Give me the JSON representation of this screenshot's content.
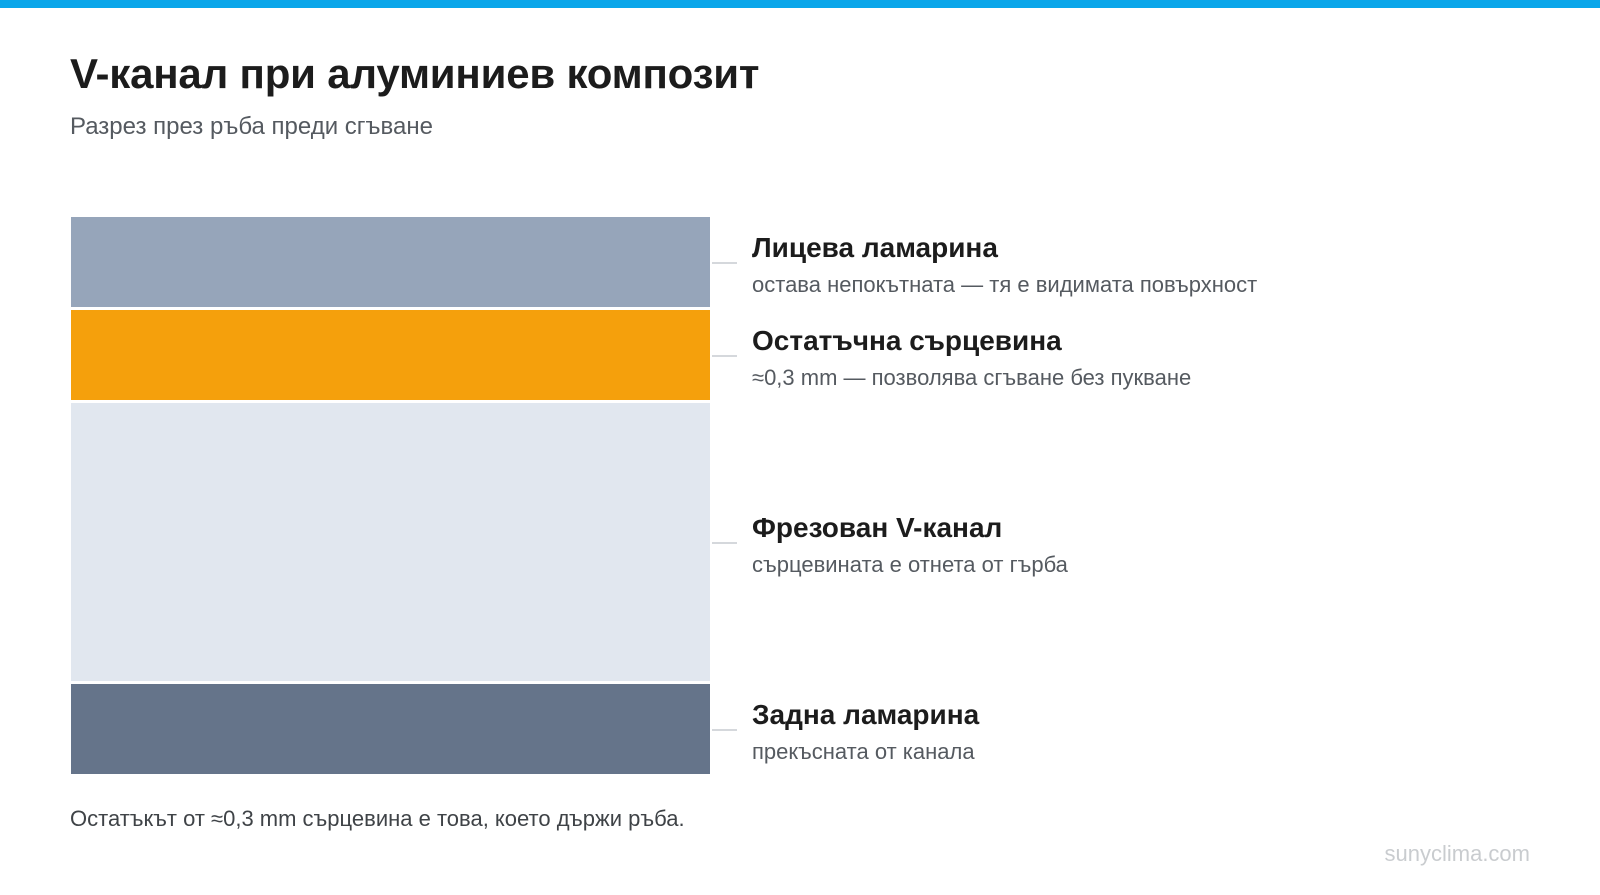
{
  "header": {
    "title": "V-канал при алуминиев композит",
    "subtitle": "Разрез през ръба преди сгъване"
  },
  "layers": [
    {
      "title": "Лицева ламарина",
      "description": "остава непокътната — тя е видимата повърхност",
      "color": "#96a5ba"
    },
    {
      "title": "Остатъчна сърцевина",
      "description": "≈0,3 mm — позволява сгъване без пукване",
      "color": "#f5a00c"
    },
    {
      "title": "Фрезован V-канал",
      "description": "сърцевината е отнета от гърба",
      "color": "#e1e7ef"
    },
    {
      "title": "Задна ламарина",
      "description": "прекъсната от канала",
      "color": "#65748a"
    }
  ],
  "note": "Остатъкът от ≈0,3 mm сърцевина е това, което държи ръба.",
  "watermark": "sunyclima.com",
  "colors": {
    "accent_bar": "#0aa6ea",
    "leader_line": "#d5d8dc"
  }
}
